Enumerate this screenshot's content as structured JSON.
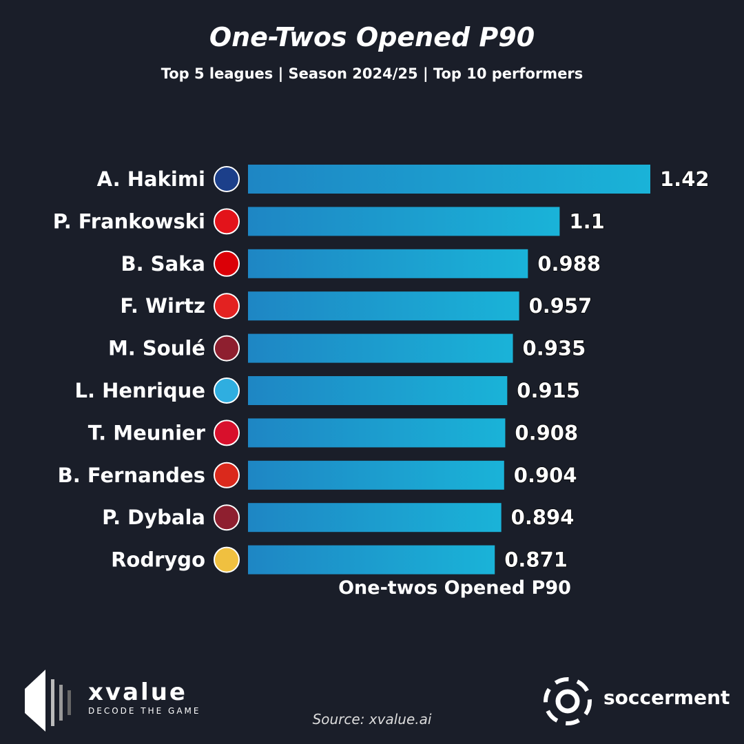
{
  "chart_data": {
    "type": "bar",
    "orientation": "horizontal",
    "title": "One-Twos Opened P90",
    "subtitle": "Top 5 leagues | Season 2024/25 | Top 10 performers",
    "xlabel": "One-twos Opened P90",
    "xlim": [
      0,
      1.42
    ],
    "grid": false,
    "categories": [
      "A. Hakimi",
      "P. Frankowski",
      "B. Saka",
      "F. Wirtz",
      "M. Soulé",
      "L. Henrique",
      "T. Meunier",
      "B. Fernandes",
      "P. Dybala",
      "Rodrygo"
    ],
    "values": [
      1.42,
      1.1,
      0.988,
      0.957,
      0.935,
      0.915,
      0.908,
      0.904,
      0.894,
      0.871
    ],
    "value_labels": [
      "1.42",
      "1.1",
      "0.988",
      "0.957",
      "0.935",
      "0.915",
      "0.908",
      "0.904",
      "0.894",
      "0.871"
    ],
    "club_badges": [
      "psg-badge",
      "lens-badge",
      "arsenal-badge",
      "leverkusen-badge",
      "roma-badge",
      "marseille-badge",
      "lille-badge",
      "man-united-badge",
      "roma-badge",
      "real-madrid-badge"
    ],
    "badge_colors": [
      "#1c3f8a",
      "#e3131a",
      "#db0007",
      "#e32221",
      "#8e1f2f",
      "#2faee0",
      "#d8102c",
      "#da291c",
      "#8e1f2f",
      "#f0c040"
    ],
    "bar_gradient": [
      "#1e86c4",
      "#1ab3d8"
    ]
  },
  "footer": {
    "source": "Source: xvalue.ai",
    "brand_left": "xvalue",
    "brand_left_tagline": "DECODE THE GAME",
    "brand_right": "soccerment"
  }
}
